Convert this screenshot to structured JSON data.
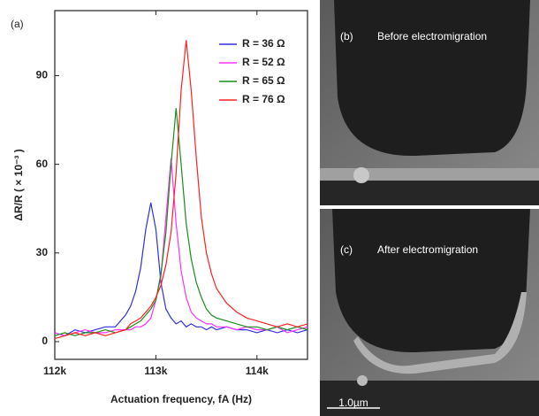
{
  "chart_data": {
    "type": "line",
    "annotation": "(a)",
    "xlabel": "Actuation frequency, fA (Hz)",
    "ylabel": "ΔR/R ( × 10⁻³ )",
    "x": [
      112000,
      112100,
      112200,
      112300,
      112400,
      112500,
      112600,
      112700,
      112750,
      112800,
      112850,
      112900,
      112950,
      113000,
      113050,
      113100,
      113150,
      113200,
      113250,
      113300,
      113350,
      113400,
      113450,
      113500,
      113550,
      113600,
      113700,
      113800,
      113900,
      114000,
      114100,
      114200,
      114300,
      114400,
      114500
    ],
    "series": [
      {
        "name": "R = 36 Ω",
        "color": "#3030e0",
        "values": [
          3,
          2,
          4,
          3,
          4,
          5,
          5,
          9,
          12,
          17,
          25,
          38,
          47,
          38,
          20,
          11,
          8,
          6,
          7,
          5,
          6,
          5,
          5,
          4,
          5,
          4,
          5,
          4,
          4,
          3,
          4,
          3,
          4,
          3,
          4
        ]
      },
      {
        "name": "R = 52 Ω",
        "color": "#ff30ff",
        "values": [
          3,
          2,
          3,
          4,
          3,
          3,
          4,
          4,
          4,
          5,
          5,
          6,
          8,
          14,
          22,
          42,
          62,
          40,
          24,
          15,
          10,
          8,
          7,
          6,
          6,
          5,
          5,
          4,
          5,
          4,
          4,
          5,
          3,
          4,
          5
        ]
      },
      {
        "name": "R = 65 Ω",
        "color": "#1a8c1a",
        "values": [
          2,
          3,
          2,
          3,
          3,
          4,
          3,
          4,
          5,
          6,
          7,
          9,
          11,
          14,
          23,
          37,
          60,
          79,
          60,
          40,
          28,
          20,
          15,
          11,
          9,
          8,
          7,
          6,
          5,
          5,
          4,
          5,
          4,
          5,
          4
        ]
      },
      {
        "name": "R = 76 Ω",
        "color": "#ff2020",
        "values": [
          1,
          2,
          3,
          2,
          3,
          2,
          3,
          4,
          6,
          7,
          8,
          10,
          12,
          15,
          19,
          26,
          37,
          57,
          85,
          102,
          85,
          62,
          42,
          30,
          23,
          18,
          13,
          10,
          8,
          7,
          6,
          5,
          6,
          5,
          6
        ]
      }
    ],
    "xlim": [
      112000,
      114500
    ],
    "xticks": [
      {
        "value": 112000,
        "label": "112k"
      },
      {
        "value": 113000,
        "label": "113k"
      },
      {
        "value": 114000,
        "label": "114k"
      }
    ],
    "ylim": [
      -6,
      112
    ],
    "yticks": [
      0,
      30,
      60,
      90
    ],
    "legend": "upper right"
  },
  "panels": [
    {
      "label": "(b)",
      "caption": "Before electromigration"
    },
    {
      "label": "(c)",
      "caption": "After electromigration",
      "scale_bar": "1.0µm"
    }
  ]
}
